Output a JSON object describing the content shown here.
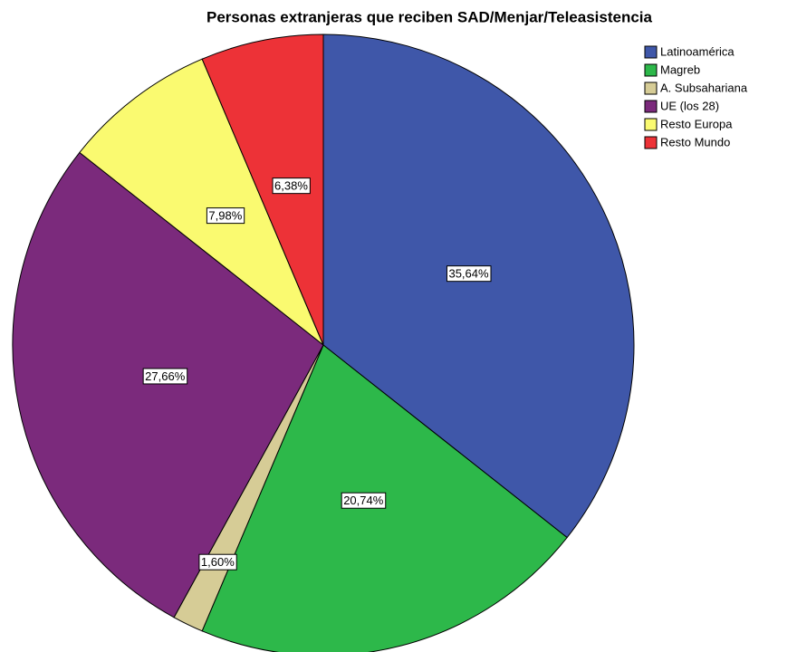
{
  "chart_data": {
    "type": "pie",
    "title": "Personas extranjeras que reciben SAD/Menjar/Teleasistencia",
    "categories": [
      "Latinoamérica",
      "Magreb",
      "A. Subsahariana",
      "UE (los 28)",
      "Resto Europa",
      "Resto Mundo"
    ],
    "values": [
      35.64,
      20.74,
      1.6,
      27.66,
      7.98,
      6.38
    ],
    "value_labels": [
      "35,64%",
      "20,74%",
      "1,60%",
      "27,66%",
      "7,98%",
      "6,38%"
    ],
    "colors": [
      "#3f57a9",
      "#2db84a",
      "#d6cc96",
      "#7b2a7c",
      "#fafa70",
      "#ed3237"
    ]
  }
}
